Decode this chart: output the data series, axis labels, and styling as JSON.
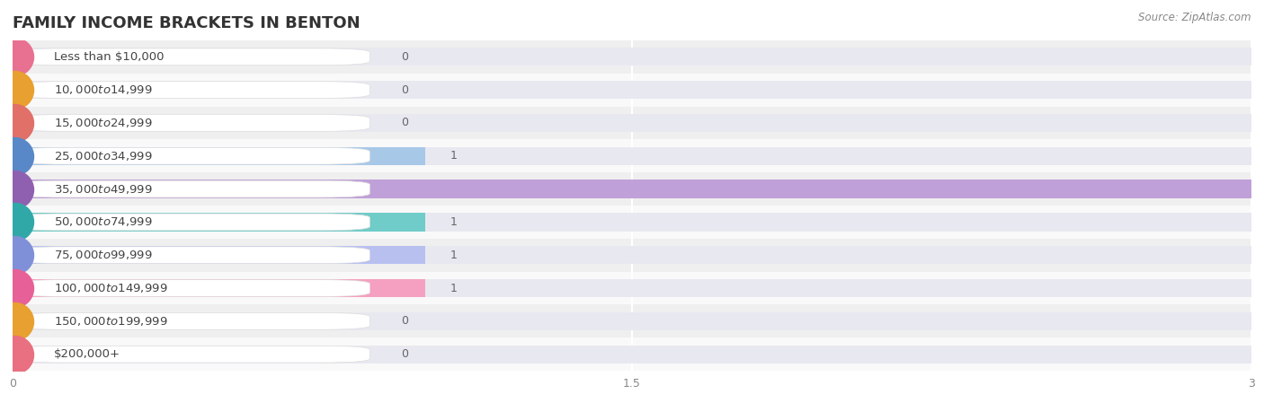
{
  "title": "FAMILY INCOME BRACKETS IN BENTON",
  "source": "Source: ZipAtlas.com",
  "categories": [
    "Less than $10,000",
    "$10,000 to $14,999",
    "$15,000 to $24,999",
    "$25,000 to $34,999",
    "$35,000 to $49,999",
    "$50,000 to $74,999",
    "$75,000 to $99,999",
    "$100,000 to $149,999",
    "$150,000 to $199,999",
    "$200,000+"
  ],
  "values": [
    0,
    0,
    0,
    1,
    3,
    1,
    1,
    1,
    0,
    0
  ],
  "bar_colors": [
    "#f5aab8",
    "#f7cfa0",
    "#f5b0a8",
    "#a8c8e8",
    "#c0a0d8",
    "#70ccc8",
    "#b8c0f0",
    "#f5a0c0",
    "#f7cfa0",
    "#f5b0b8"
  ],
  "dot_colors": [
    "#e87090",
    "#e8a030",
    "#e07068",
    "#5888c8",
    "#9060b0",
    "#30a8a8",
    "#8090d8",
    "#e86098",
    "#e8a030",
    "#e87080"
  ],
  "row_colors": [
    "#efefef",
    "#f9f9f9"
  ],
  "xlim": [
    0,
    3
  ],
  "xticks": [
    0,
    1.5,
    3
  ],
  "background_color": "#ffffff",
  "label_bg_color": "#ffffff",
  "bar_bg_color": "#e8e8f0",
  "title_fontsize": 13,
  "label_fontsize": 9.5,
  "value_fontsize": 9,
  "source_fontsize": 8.5
}
